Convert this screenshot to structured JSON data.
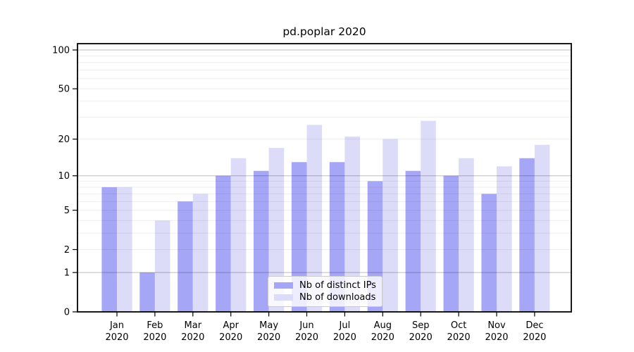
{
  "chart_data": {
    "type": "bar",
    "title": "pd.poplar 2020",
    "categories": [
      "Jan",
      "Feb",
      "Mar",
      "Apr",
      "May",
      "Jun",
      "Jul",
      "Aug",
      "Sep",
      "Oct",
      "Nov",
      "Dec"
    ],
    "year_label": "2020",
    "series": [
      {
        "name": "Nb of distinct IPs",
        "color": "#a6a6f6",
        "values": [
          8,
          1,
          6,
          10,
          11,
          13,
          13,
          9,
          11,
          10,
          7,
          14
        ]
      },
      {
        "name": "Nb of downloads",
        "color": "#dcdcf8",
        "values": [
          8,
          4,
          7,
          14,
          17,
          26,
          21,
          20,
          28,
          14,
          12,
          18
        ]
      }
    ],
    "yscale": "log1p",
    "ylim": [
      0,
      112
    ],
    "yticks": [
      0,
      1,
      2,
      5,
      10,
      20,
      50,
      100
    ],
    "grid_major": [
      1,
      10,
      100
    ],
    "grid_minor": [
      2,
      3,
      4,
      5,
      6,
      7,
      8,
      9,
      20,
      30,
      40,
      50,
      60,
      70,
      80,
      90
    ],
    "legend_position": "lower center",
    "frame_color": "#000000",
    "background_color": "#ffffff"
  }
}
